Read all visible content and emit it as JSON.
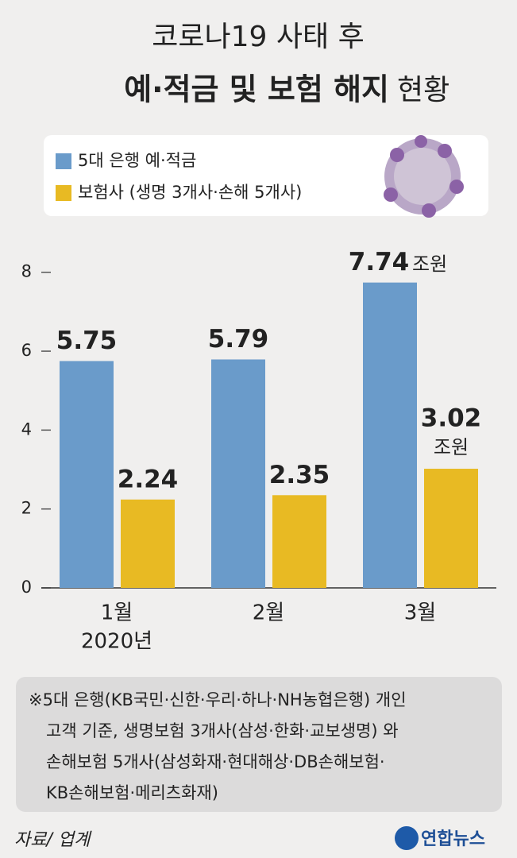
{
  "chart_data": {
    "type": "bar",
    "title": "코로나19 사태 후",
    "subtitle_bold": "예·적금 및 보험 해지",
    "subtitle_rest": "현황",
    "categories": [
      "1월",
      "2월",
      "3월"
    ],
    "x_year_label": "2020년",
    "series": [
      {
        "name": "5대 은행 예·적금",
        "color": "#6a9bca",
        "values": [
          5.75,
          5.79,
          7.74
        ]
      },
      {
        "name": "보험사 (생명 3개사·손해 5개사)",
        "color": "#e8ba23",
        "values": [
          2.24,
          2.35,
          3.02
        ]
      }
    ],
    "unit": "조원",
    "ylim": [
      0,
      8.8
    ],
    "yticks": [
      0,
      2,
      4,
      6,
      8
    ],
    "note": [
      "※5대 은행(KB국민·신한·우리·하나·NH농협은행) 개인",
      "고객 기준, 생명보험 3개사(삼성·한화·교보생명) 와",
      "손해보험 5개사(삼성화재·현대해상·DB손해보험·",
      "KB손해보험·메리츠화재)"
    ],
    "source": "자료/ 업계",
    "logo": "연합뉴스"
  }
}
